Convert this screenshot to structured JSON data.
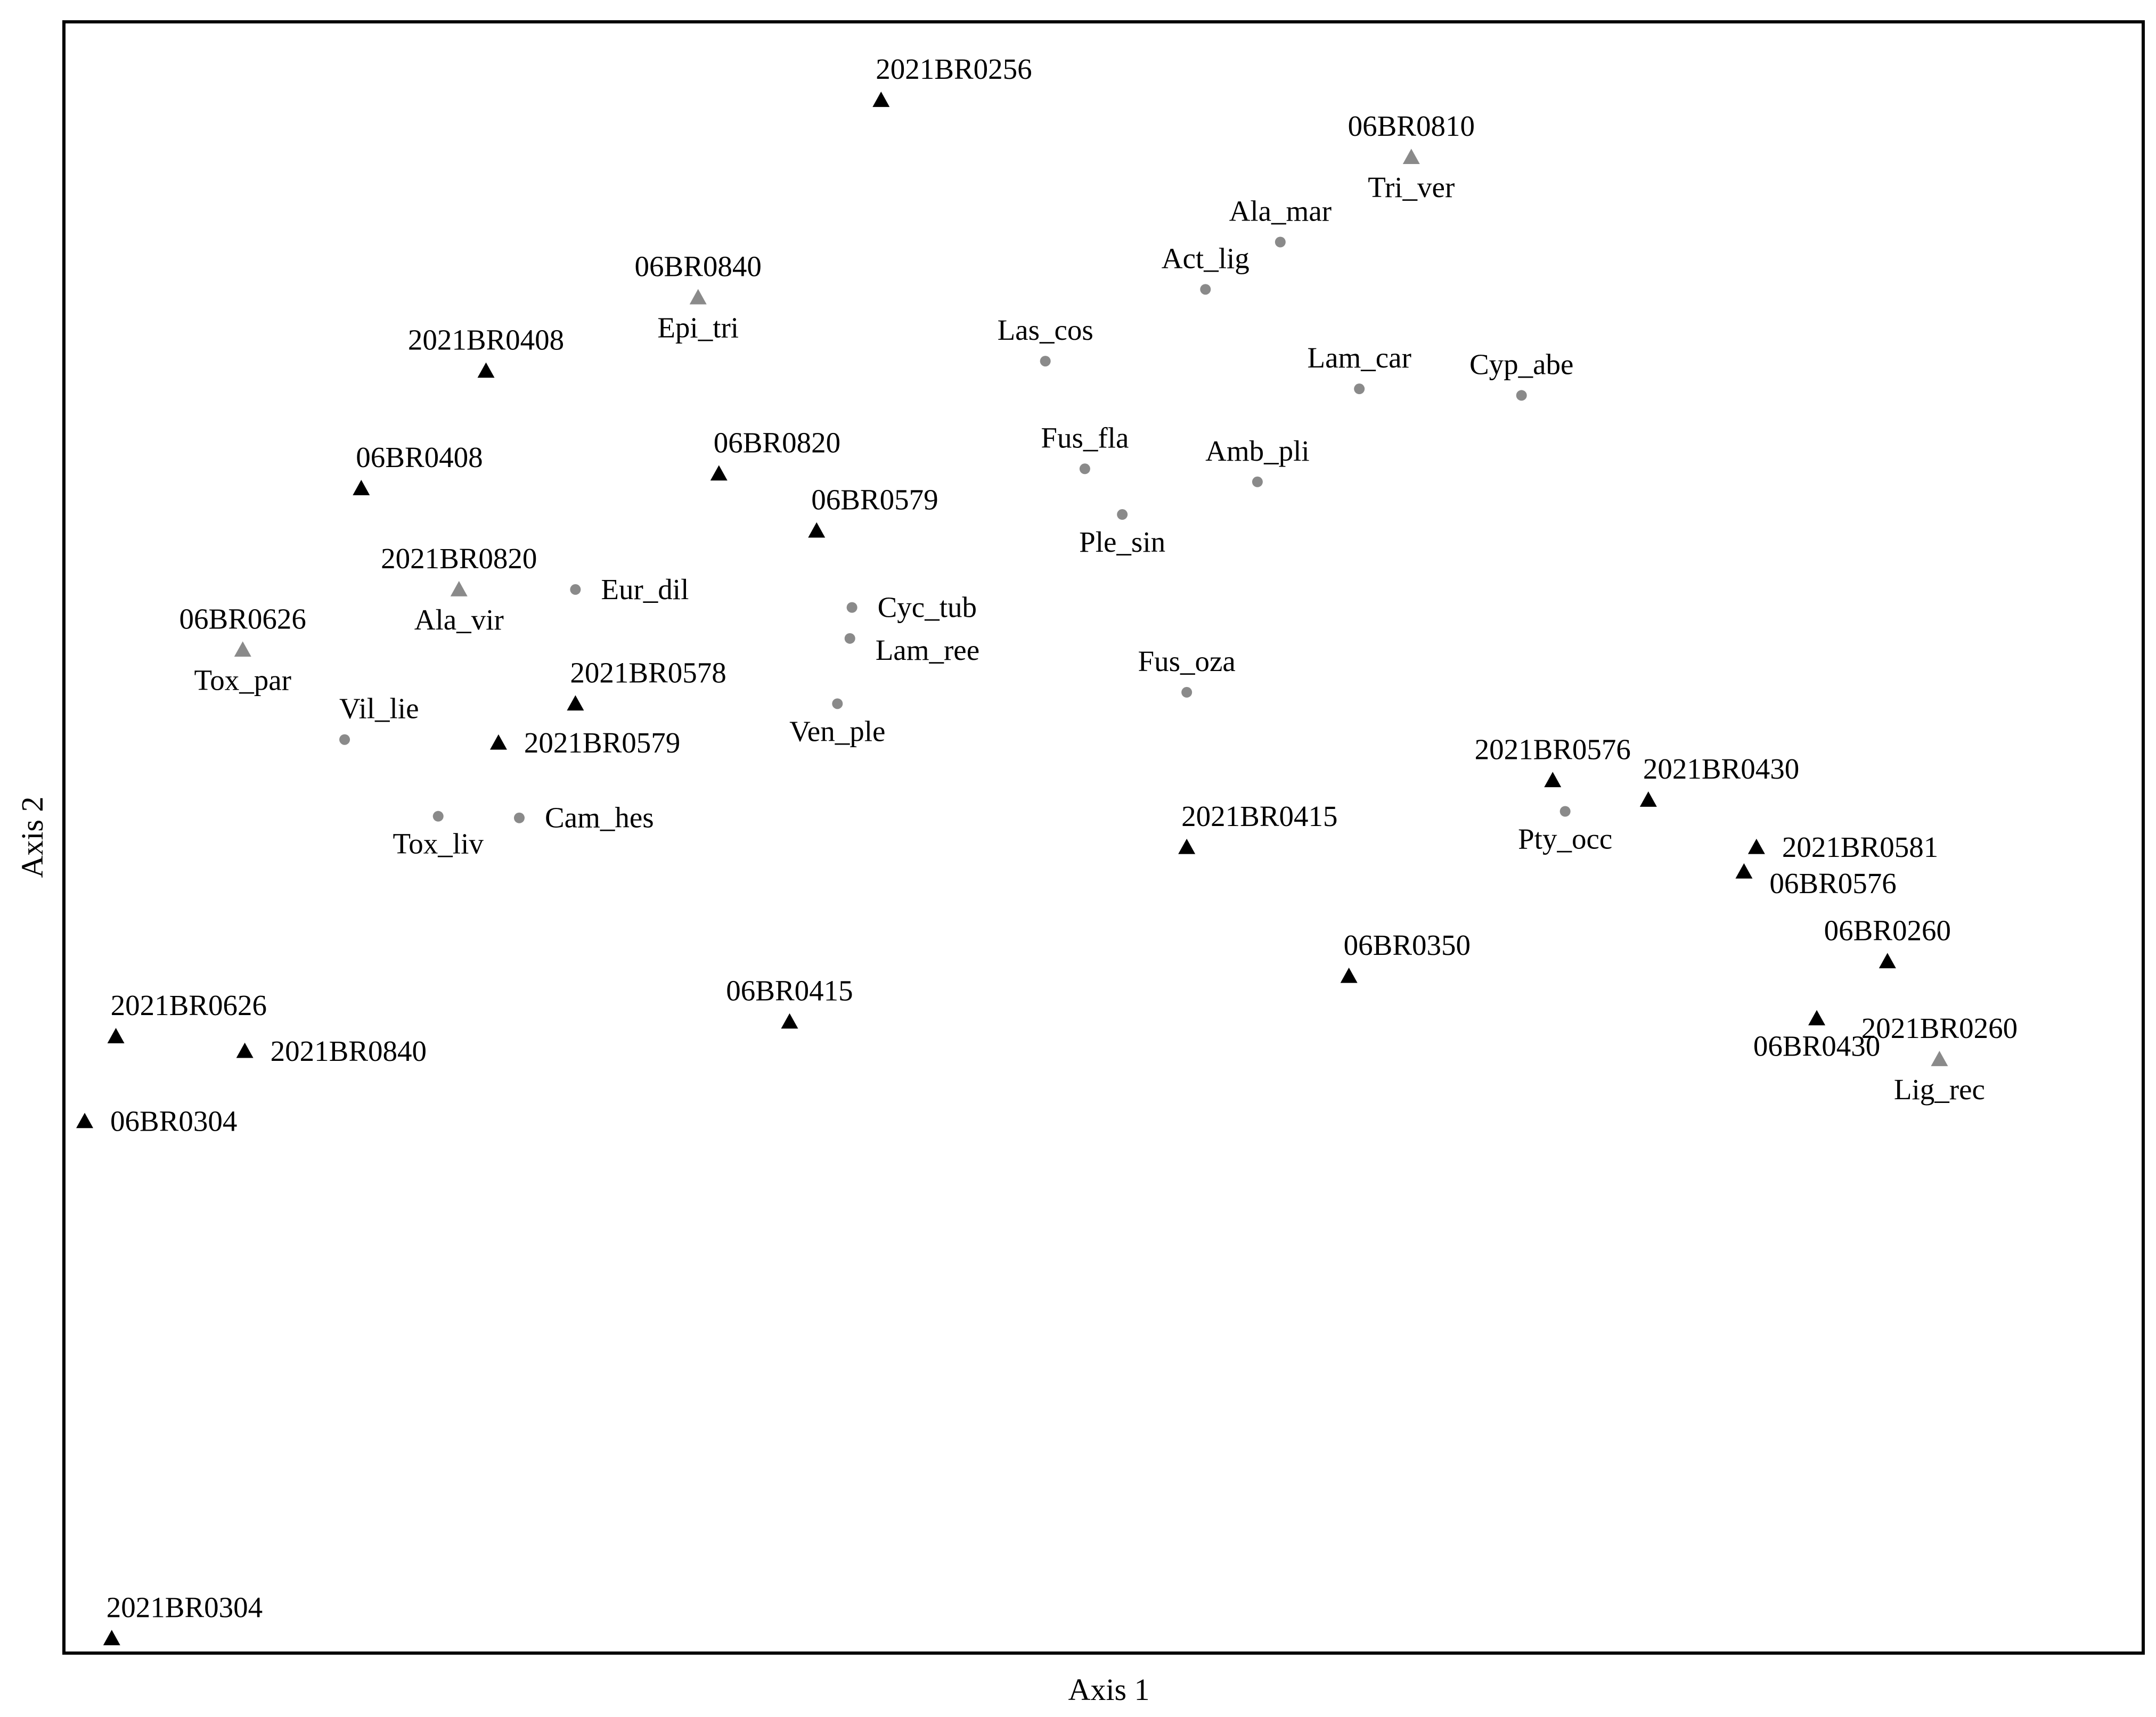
{
  "chart_data": {
    "type": "scatter",
    "title": "",
    "xlabel": "Axis 1",
    "ylabel": "Axis 2",
    "xlim": [
      0,
      1
    ],
    "ylim": [
      0,
      1
    ],
    "grid": false,
    "legend": "none",
    "colors": {
      "sites": "#000000",
      "species": "#8a8a8a",
      "overlap": "#8a8a8a",
      "frame": "#000000"
    },
    "series": [
      {
        "marker": "triangle",
        "color": "#000000",
        "points": [
          {
            "label": "2021BR0256",
            "x": 0.393,
            "y": 0.952,
            "pos": "above-right"
          },
          {
            "label": "2021BR0408",
            "x": 0.203,
            "y": 0.786,
            "pos": "above"
          },
          {
            "label": "06BR0408",
            "x": 0.143,
            "y": 0.714,
            "pos": "above-right"
          },
          {
            "label": "06BR0820",
            "x": 0.315,
            "y": 0.723,
            "pos": "above-right"
          },
          {
            "label": "06BR0579",
            "x": 0.362,
            "y": 0.688,
            "pos": "above-right"
          },
          {
            "label": "2021BR0578",
            "x": 0.246,
            "y": 0.582,
            "pos": "above-right"
          },
          {
            "label": "2021BR0579",
            "x": 0.209,
            "y": 0.558,
            "pos": "right"
          },
          {
            "label": "2021BR0415",
            "x": 0.54,
            "y": 0.494,
            "pos": "above-right"
          },
          {
            "label": "06BR0350",
            "x": 0.618,
            "y": 0.415,
            "pos": "above-right"
          },
          {
            "label": "06BR0415",
            "x": 0.349,
            "y": 0.387,
            "pos": "above"
          },
          {
            "label": "2021BR0576",
            "x": 0.716,
            "y": 0.535,
            "pos": "above"
          },
          {
            "label": "2021BR0430",
            "x": 0.762,
            "y": 0.523,
            "pos": "above-right"
          },
          {
            "label": "2021BR0581",
            "x": 0.814,
            "y": 0.494,
            "pos": "right"
          },
          {
            "label": "06BR0576",
            "x": 0.808,
            "y": 0.479,
            "pos": "right-below"
          },
          {
            "label": "06BR0260",
            "x": 0.877,
            "y": 0.424,
            "pos": "above"
          },
          {
            "label": "06BR0430",
            "x": 0.843,
            "y": 0.389,
            "pos": "below"
          },
          {
            "label": "2021BR0626",
            "x": 0.025,
            "y": 0.378,
            "pos": "above-right"
          },
          {
            "label": "2021BR0840",
            "x": 0.087,
            "y": 0.369,
            "pos": "right"
          },
          {
            "label": "06BR0304",
            "x": 0.01,
            "y": 0.326,
            "pos": "right"
          },
          {
            "label": "2021BR0304",
            "x": 0.023,
            "y": 0.009,
            "pos": "above-right"
          }
        ]
      },
      {
        "marker": "circle",
        "color": "#8a8a8a",
        "points": [
          {
            "label": "Ala_mar",
            "x": 0.585,
            "y": 0.865,
            "pos": "above"
          },
          {
            "label": "Act_lig",
            "x": 0.549,
            "y": 0.836,
            "pos": "above"
          },
          {
            "label": "Las_cos",
            "x": 0.472,
            "y": 0.792,
            "pos": "above"
          },
          {
            "label": "Lam_car",
            "x": 0.623,
            "y": 0.775,
            "pos": "above"
          },
          {
            "label": "Cyp_abe",
            "x": 0.701,
            "y": 0.771,
            "pos": "above"
          },
          {
            "label": "Fus_fla",
            "x": 0.491,
            "y": 0.726,
            "pos": "above"
          },
          {
            "label": "Amb_pli",
            "x": 0.574,
            "y": 0.718,
            "pos": "above"
          },
          {
            "label": "Ple_sin",
            "x": 0.509,
            "y": 0.698,
            "pos": "below"
          },
          {
            "label": "Eur_dil",
            "x": 0.246,
            "y": 0.652,
            "pos": "right"
          },
          {
            "label": "Cyc_tub",
            "x": 0.379,
            "y": 0.641,
            "pos": "right"
          },
          {
            "label": "Lam_ree",
            "x": 0.378,
            "y": 0.622,
            "pos": "right-below"
          },
          {
            "label": "Fus_oza",
            "x": 0.54,
            "y": 0.589,
            "pos": "above"
          },
          {
            "label": "Ven_ple",
            "x": 0.372,
            "y": 0.582,
            "pos": "below"
          },
          {
            "label": "Vil_lie",
            "x": 0.135,
            "y": 0.56,
            "pos": "above-right"
          },
          {
            "label": "Tox_liv",
            "x": 0.18,
            "y": 0.513,
            "pos": "below"
          },
          {
            "label": "Cam_hes",
            "x": 0.219,
            "y": 0.512,
            "pos": "right"
          },
          {
            "label": "Pty_occ",
            "x": 0.722,
            "y": 0.516,
            "pos": "below"
          }
        ]
      },
      {
        "marker": "triangle",
        "color": "#8a8a8a",
        "points": [
          {
            "label": "06BR0810",
            "label2": "Tri_ver",
            "x": 0.648,
            "y": 0.917
          },
          {
            "label": "06BR0840",
            "label2": "Epi_tri",
            "x": 0.305,
            "y": 0.831
          },
          {
            "label": "2021BR0820",
            "label2": "Ala_vir",
            "x": 0.19,
            "y": 0.652
          },
          {
            "label": "06BR0626",
            "label2": "Tox_par",
            "x": 0.086,
            "y": 0.615
          },
          {
            "label": "2021BR0260",
            "label2": "Lig_rec",
            "x": 0.902,
            "y": 0.364
          }
        ]
      }
    ]
  }
}
